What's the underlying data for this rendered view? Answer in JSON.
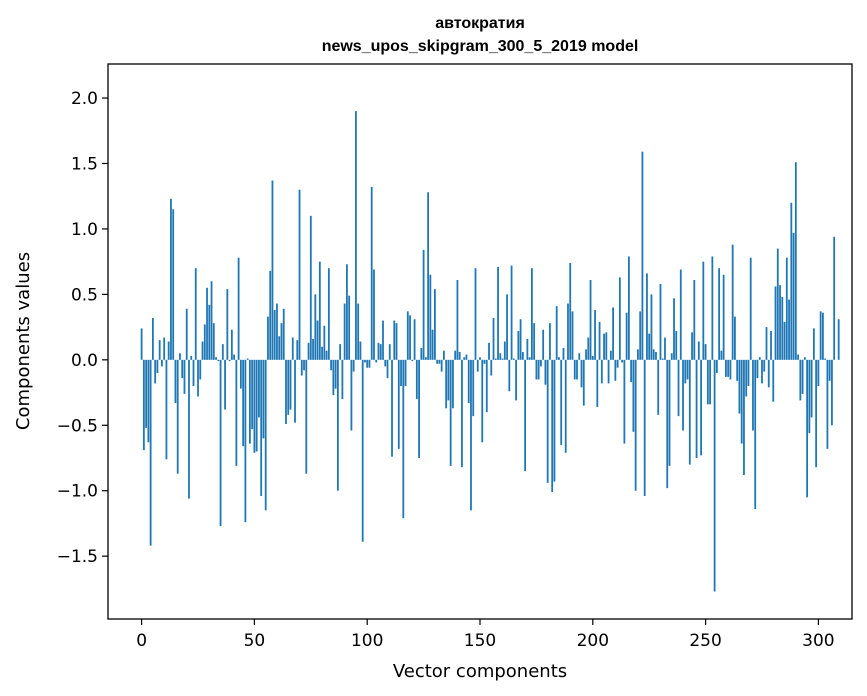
{
  "chart_data": {
    "type": "bar",
    "title": "автократия",
    "subtitle": "news_upos_skipgram_300_5_2019 model",
    "xlabel": "Vector components",
    "ylabel": "Components values",
    "xlim": [
      -14.9,
      314.9
    ],
    "ylim": [
      -1.98,
      2.26
    ],
    "xticks": [
      0,
      50,
      100,
      150,
      200,
      250,
      300
    ],
    "xtick_labels": [
      "0",
      "50",
      "100",
      "150",
      "200",
      "250",
      "300"
    ],
    "yticks": [
      -1.5,
      -1.0,
      -0.5,
      0.0,
      0.5,
      1.0,
      1.5,
      2.0
    ],
    "ytick_labels": [
      "−1.5",
      "−1.0",
      "−0.5",
      "0.0",
      "0.5",
      "1.0",
      "1.5",
      "2.0"
    ],
    "bar_color": "#1f77b4",
    "values": [
      0.24,
      -0.69,
      -0.52,
      -0.63,
      -1.42,
      0.32,
      -0.18,
      -0.1,
      0.15,
      -0.05,
      0.17,
      -0.76,
      0.14,
      1.23,
      1.15,
      -0.33,
      -0.87,
      0.05,
      -0.14,
      -0.26,
      0.39,
      -1.06,
      0.03,
      -0.2,
      0.7,
      -0.28,
      -0.15,
      0.14,
      0.27,
      0.55,
      0.42,
      0.6,
      0.28,
      0.02,
      -0.01,
      -1.27,
      0.12,
      -0.38,
      0.54,
      -0.01,
      0.23,
      0.04,
      -0.81,
      0.78,
      -0.22,
      -0.66,
      -1.24,
      0.01,
      -0.64,
      -0.53,
      -0.71,
      -0.7,
      -0.44,
      -1.04,
      -0.6,
      -1.15,
      0.33,
      0.68,
      1.37,
      0.38,
      0.43,
      0.18,
      0.28,
      0.39,
      -0.49,
      -0.42,
      -0.38,
      0.17,
      -0.48,
      0.15,
      1.3,
      -0.12,
      -0.08,
      -0.87,
      0.13,
      1.1,
      0.16,
      0.5,
      0.3,
      0.75,
      0.1,
      0.26,
      0.07,
      0.7,
      -0.08,
      -0.27,
      -0.22,
      -1.0,
      0.12,
      -0.3,
      0.43,
      0.73,
      0.49,
      -0.54,
      -0.09,
      1.9,
      0.43,
      0.14,
      -1.39,
      -0.02,
      -0.06,
      -0.06,
      1.32,
      0.69,
      -0.02,
      0.13,
      0.12,
      0.3,
      -0.05,
      -0.14,
      0.12,
      -0.74,
      0.3,
      0.28,
      -0.68,
      -0.2,
      -1.21,
      -0.2,
      0.37,
      0.34,
      -0.01,
      0.31,
      -0.3,
      -0.75,
      0.09,
      0.84,
      0.02,
      1.28,
      0.65,
      0.23,
      0.54,
      -0.03,
      -0.03,
      -0.09,
      0.07,
      -0.37,
      -0.31,
      -0.81,
      -0.37,
      0.07,
      0.61,
      0.06,
      -0.82,
      0.02,
      0.04,
      -0.33,
      -1.15,
      -0.43,
      0.7,
      -0.09,
      0.02,
      -0.63,
      -0.03,
      -0.4,
      0.13,
      -0.12,
      0.32,
      0.01,
      0.71,
      0.05,
      0.01,
      0.14,
      0.5,
      -0.24,
      0.72,
      0.01,
      -0.31,
      0.22,
      0.31,
      0.06,
      -0.85,
      0.16,
      0.02,
      0.7,
      0.28,
      -0.15,
      -0.15,
      -0.05,
      0.23,
      -0.19,
      -0.94,
      0.28,
      -1.01,
      -0.93,
      0.41,
      0.02,
      -0.65,
      0.09,
      -0.71,
      0.43,
      0.74,
      0.37,
      -0.15,
      -0.15,
      0.05,
      -0.21,
      -0.35,
      0.08,
      0.17,
      0.61,
      0.03,
      0.38,
      -0.36,
      0.29,
      -0.18,
      0.2,
      0.21,
      -0.18,
      0.07,
      0.4,
      -0.16,
      -0.06,
      0.63,
      -0.02,
      -0.64,
      0.36,
      0.79,
      -0.17,
      -0.55,
      -1.0,
      0.08,
      0.37,
      1.59,
      -1.04,
      0.66,
      0.2,
      0.5,
      0.08,
      0.06,
      -0.42,
      0.58,
      0.01,
      0.17,
      -0.98,
      -0.81,
      0.05,
      0.47,
      0.22,
      -0.43,
      0.69,
      -0.54,
      -0.18,
      -0.15,
      -0.8,
      0.21,
      0.61,
      -0.75,
      0.14,
      -0.73,
      0.75,
      0.12,
      -0.34,
      -0.34,
      0.79,
      -1.77,
      -0.1,
      0.7,
      0.07,
      0.65,
      -0.13,
      -0.13,
      -0.15,
      0.88,
      0.33,
      -0.16,
      -0.41,
      -0.64,
      -0.88,
      -0.28,
      -0.2,
      0.78,
      -0.54,
      -1.14,
      -0.14,
      0.02,
      -0.18,
      -0.09,
      0.25,
      -0.21,
      0.22,
      -0.32,
      0.56,
      0.85,
      0.57,
      0.48,
      0.29,
      0.78,
      0.46,
      1.2,
      0.97,
      1.51,
      0.04,
      -0.31,
      -0.26,
      0.02,
      -1.05,
      -0.56,
      -0.44,
      0.24,
      -0.82,
      -0.2,
      0.37,
      0.36,
      0.01,
      -0.68,
      -0.16,
      -0.5,
      0.94,
      0.0,
      0.31
    ]
  }
}
